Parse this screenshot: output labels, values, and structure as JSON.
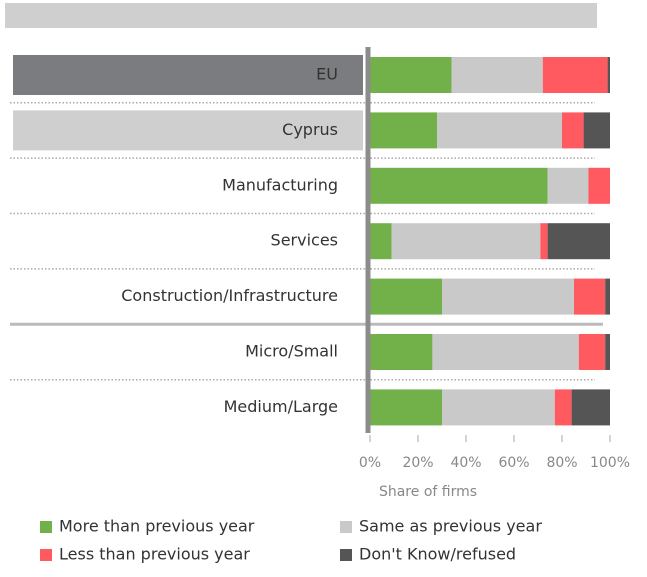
{
  "chart_data": {
    "type": "stacked_bar_horizontal",
    "categories": [
      "EU",
      "Cyprus",
      "Manufacturing",
      "Services",
      "Construction/Infrastructure",
      "Micro/Small",
      "Medium/Large"
    ],
    "label_backgrounds": [
      "#7b7c7f",
      "#cfcfcf",
      null,
      null,
      null,
      null,
      null
    ],
    "series": [
      {
        "name": "More than previous year",
        "color": "#72b04a",
        "values": [
          34,
          28,
          74,
          9,
          30,
          26,
          30
        ]
      },
      {
        "name": "Same as previous year",
        "color": "#c9c9c9",
        "values": [
          38,
          52,
          17,
          62,
          55,
          61,
          47
        ]
      },
      {
        "name": "Less than previous year",
        "color": "#ff5a5f",
        "values": [
          27,
          9,
          9,
          3,
          13,
          11,
          7
        ]
      },
      {
        "name": "Don't Know/refused",
        "color": "#555555",
        "values": [
          1,
          11,
          0,
          26,
          2,
          2,
          16
        ]
      }
    ],
    "xlabel": "Share of firms",
    "xlim": [
      0,
      100
    ],
    "xticks": [
      {
        "value": 0,
        "label": "0%"
      },
      {
        "value": 20,
        "label": "20%"
      },
      {
        "value": 40,
        "label": "40%"
      },
      {
        "value": 60,
        "label": "60%"
      },
      {
        "value": 80,
        "label": "80%"
      },
      {
        "value": 100,
        "label": "100%"
      }
    ]
  }
}
